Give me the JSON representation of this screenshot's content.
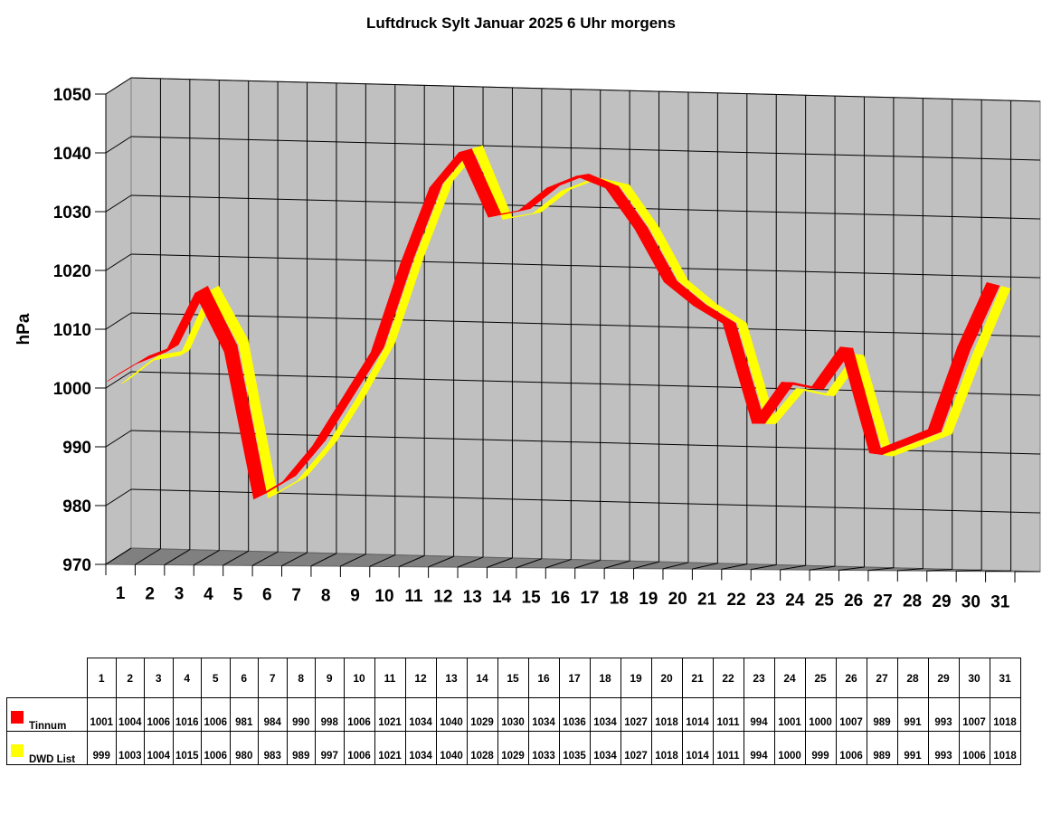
{
  "title": "Luftdruck Sylt Januar 2025 6 Uhr morgens",
  "colors": {
    "tinnum": "#ff0000",
    "dwd": "#ffff00",
    "wall": "#c0c0c0",
    "floor": "#808080"
  },
  "chart_data": {
    "type": "line",
    "style": "3d-ribbon",
    "title": "Luftdruck Sylt Januar 2025 6 Uhr morgens",
    "xlabel": "",
    "ylabel": "hPa",
    "ylim": [
      970,
      1050
    ],
    "yticks": [
      970,
      980,
      990,
      1000,
      1010,
      1020,
      1030,
      1040,
      1050
    ],
    "grid": true,
    "legend_position": "data-table-below",
    "categories": [
      "1",
      "2",
      "3",
      "4",
      "5",
      "6",
      "7",
      "8",
      "9",
      "10",
      "11",
      "12",
      "13",
      "14",
      "15",
      "16",
      "17",
      "18",
      "19",
      "20",
      "21",
      "22",
      "23",
      "24",
      "25",
      "26",
      "27",
      "28",
      "29",
      "30",
      "31"
    ],
    "series": [
      {
        "name": "Tinnum",
        "color": "#ff0000",
        "values": [
          1001,
          1004,
          1006,
          1016,
          1006,
          981,
          984,
          990,
          998,
          1006,
          1021,
          1034,
          1040,
          1029,
          1030,
          1034,
          1036,
          1034,
          1027,
          1018,
          1014,
          1011,
          994,
          1001,
          1000,
          1007,
          989,
          991,
          993,
          1007,
          1018
        ]
      },
      {
        "name": "DWD List",
        "color": "#ffff00",
        "values": [
          999,
          1003,
          1004,
          1015,
          1006,
          980,
          983,
          989,
          997,
          1006,
          1021,
          1034,
          1040,
          1028,
          1029,
          1033,
          1035,
          1034,
          1027,
          1018,
          1014,
          1011,
          994,
          1000,
          999,
          1006,
          989,
          991,
          993,
          1006,
          1018
        ]
      }
    ]
  },
  "table": {
    "series_labels": [
      "Tinnum",
      "DWD List"
    ]
  }
}
